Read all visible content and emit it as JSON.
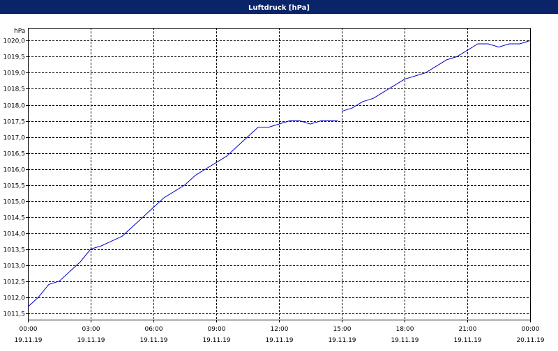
{
  "chart_data": {
    "type": "line",
    "title": "Luftdruck [hPa]",
    "y_unit": "hPa",
    "x": [
      0,
      0.5,
      1,
      1.5,
      2,
      2.5,
      3,
      3.5,
      4,
      4.5,
      5,
      5.5,
      6,
      6.5,
      7,
      7.5,
      8,
      8.5,
      9,
      9.5,
      10,
      10.5,
      11,
      11.5,
      12,
      12.5,
      13,
      13.5,
      14,
      14.5,
      14.8,
      14.9,
      15,
      15.5,
      16,
      16.5,
      17,
      17.5,
      18,
      18.5,
      19,
      19.5,
      20,
      20.5,
      21,
      21.5,
      22,
      22.5,
      23,
      23.5,
      24
    ],
    "series": [
      {
        "name": "Luftdruck",
        "color": "#0000c8",
        "values": [
          1011.7,
          1012.0,
          1012.4,
          1012.5,
          1012.8,
          1013.1,
          1013.5,
          1013.6,
          1013.75,
          1013.9,
          1014.2,
          1014.5,
          1014.8,
          1015.1,
          1015.3,
          1015.5,
          1015.8,
          1016.0,
          1016.2,
          1016.4,
          1016.7,
          1017.0,
          1017.3,
          1017.3,
          1017.4,
          1017.5,
          1017.5,
          1017.4,
          1017.5,
          1017.5,
          1017.5,
          null,
          1017.8,
          1017.9,
          1018.1,
          1018.2,
          1018.4,
          1018.6,
          1018.8,
          1018.9,
          1019.0,
          1019.2,
          1019.4,
          1019.5,
          1019.7,
          1019.9,
          1019.9,
          1019.8,
          1019.9,
          1019.9,
          1020.0
        ]
      }
    ],
    "xlim": [
      0,
      24
    ],
    "xticks": [
      {
        "value": 0,
        "label": "00:00",
        "date": "19.11.19"
      },
      {
        "value": 3,
        "label": "03:00",
        "date": "19.11.19"
      },
      {
        "value": 6,
        "label": "06:00",
        "date": "19.11.19"
      },
      {
        "value": 9,
        "label": "09:00",
        "date": "19.11.19"
      },
      {
        "value": 12,
        "label": "12:00",
        "date": "19.11.19"
      },
      {
        "value": 15,
        "label": "15:00",
        "date": "19.11.19"
      },
      {
        "value": 18,
        "label": "18:00",
        "date": "19.11.19"
      },
      {
        "value": 21,
        "label": "21:00",
        "date": "19.11.19"
      },
      {
        "value": 24,
        "label": "00:00",
        "date": "20.11.19"
      }
    ],
    "ylim": [
      1011.3,
      1020.4
    ],
    "yticks": [
      {
        "value": 1011.5,
        "label": "1011,5"
      },
      {
        "value": 1012,
        "label": "1012,0"
      },
      {
        "value": 1012.5,
        "label": "1012,5"
      },
      {
        "value": 1013,
        "label": "1013,0"
      },
      {
        "value": 1013.5,
        "label": "1013,5"
      },
      {
        "value": 1014,
        "label": "1014,0"
      },
      {
        "value": 1014.5,
        "label": "1014,5"
      },
      {
        "value": 1015,
        "label": "1015,0"
      },
      {
        "value": 1015.5,
        "label": "1015,5"
      },
      {
        "value": 1016,
        "label": "1016,0"
      },
      {
        "value": 1016.5,
        "label": "1016,5"
      },
      {
        "value": 1017,
        "label": "1017,0"
      },
      {
        "value": 1017.5,
        "label": "1017,5"
      },
      {
        "value": 1018,
        "label": "1018,0"
      },
      {
        "value": 1018.5,
        "label": "1018,5"
      },
      {
        "value": 1019,
        "label": "1019,0"
      },
      {
        "value": 1019.5,
        "label": "1019,5"
      },
      {
        "value": 1020,
        "label": "1020,0"
      }
    ],
    "grid": true
  }
}
